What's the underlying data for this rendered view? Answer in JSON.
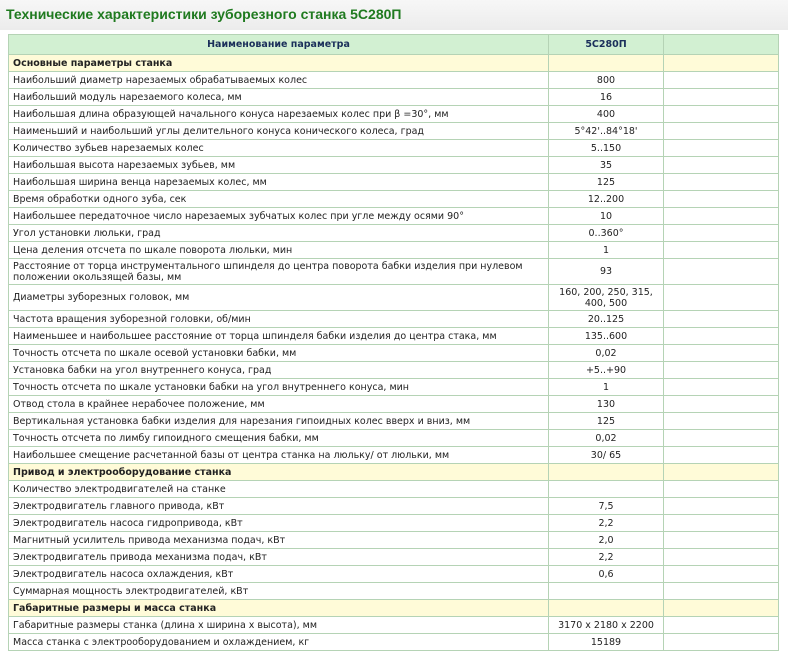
{
  "title": "Технические характеристики зуборезного станка 5С280П",
  "table": {
    "header": [
      "Наименование параметра",
      "5С280П"
    ],
    "sections": [
      {
        "title": "Основные параметры станка",
        "rows": [
          [
            "Наибольший диаметр нарезаемых обрабатываемых колес",
            "800"
          ],
          [
            "Наибольший модуль нарезаемого колеса, мм",
            "16"
          ],
          [
            "Наибольшая длина образующей начального конуса нарезаемых колес при β =30°, мм",
            "400"
          ],
          [
            "Наименьший и наибольший углы делительного конуса конического колеса, град",
            "5°42'..84°18'"
          ],
          [
            "Количество зубьев нарезаемых колес",
            "5..150"
          ],
          [
            "Наибольшая высота нарезаемых зубьев, мм",
            "35"
          ],
          [
            "Наибольшая ширина венца нарезаемых колес, мм",
            "125"
          ],
          [
            "Время обработки одного зуба, сек",
            "12..200"
          ],
          [
            "Наибольшее передаточное число нарезаемых зубчатых колес при угле между осями 90°",
            "10"
          ],
          [
            "Угол установки люльки, град",
            "0..360°"
          ],
          [
            "Цена деления отсчета по шкале поворота люльки, мин",
            "1"
          ],
          [
            "Расстояние от торца инструментального шпинделя до центра поворота бабки изделия при нулевом положении окользящей базы, мм",
            "93"
          ],
          [
            "Диаметры зуборезных головок, мм",
            "160, 200, 250, 315, 400, 500"
          ],
          [
            "Частота вращения зуборезной головки, об/мин",
            "20..125"
          ],
          [
            "Наименьшее и наибольшее расстояние от торца шпинделя бабки изделия до центра стака, мм",
            "135..600"
          ],
          [
            "Точность отсчета по шкале осевой установки бабки, мм",
            "0,02"
          ],
          [
            "Установка бабки на угол внутреннего конуса, град",
            "+5..+90"
          ],
          [
            "Точность отсчета по шкале установки бабки на угол внутреннего конуса, мин",
            "1"
          ],
          [
            "Отвод стола в крайнее нерабочее положение, мм",
            "130"
          ],
          [
            "Вертикальная установка бабки изделия для нарезания гипоидных колес вверх и вниз, мм",
            "125"
          ],
          [
            "Точность отсчета по лимбу гипоидного смещения бабки, мм",
            "0,02"
          ],
          [
            "Наибольшее смещение расчетанной базы от центра станка на люльку/ от люльки, мм",
            "30/ 65"
          ]
        ]
      },
      {
        "title": "Привод и электрооборудование станка",
        "rows": [
          [
            "Количество электродвигателей на станке"
          ],
          [
            "Электродвигатель главного привода, кВт",
            "7,5"
          ],
          [
            "Электродвигатель насоса гидропривода, кВт",
            "2,2"
          ],
          [
            "Магнитный усилитель привода механизма подач, кВт",
            "2,0"
          ],
          [
            "Электродвигатель привода механизма подач, кВт",
            "2,2"
          ],
          [
            "Электродвигатель насоса охлаждения, кВт",
            "0,6"
          ],
          [
            "Суммарная мощность электродвигателей, кВт"
          ]
        ]
      },
      {
        "title": "Габаритные размеры и масса станка",
        "rows": [
          [
            "Габаритные размеры станка (длина х ширина х высота), мм",
            "3170 х 2180 х 2200"
          ],
          [
            "Масса станка с электрооборудованием и охлаждением, кг",
            "15189"
          ]
        ]
      }
    ]
  }
}
